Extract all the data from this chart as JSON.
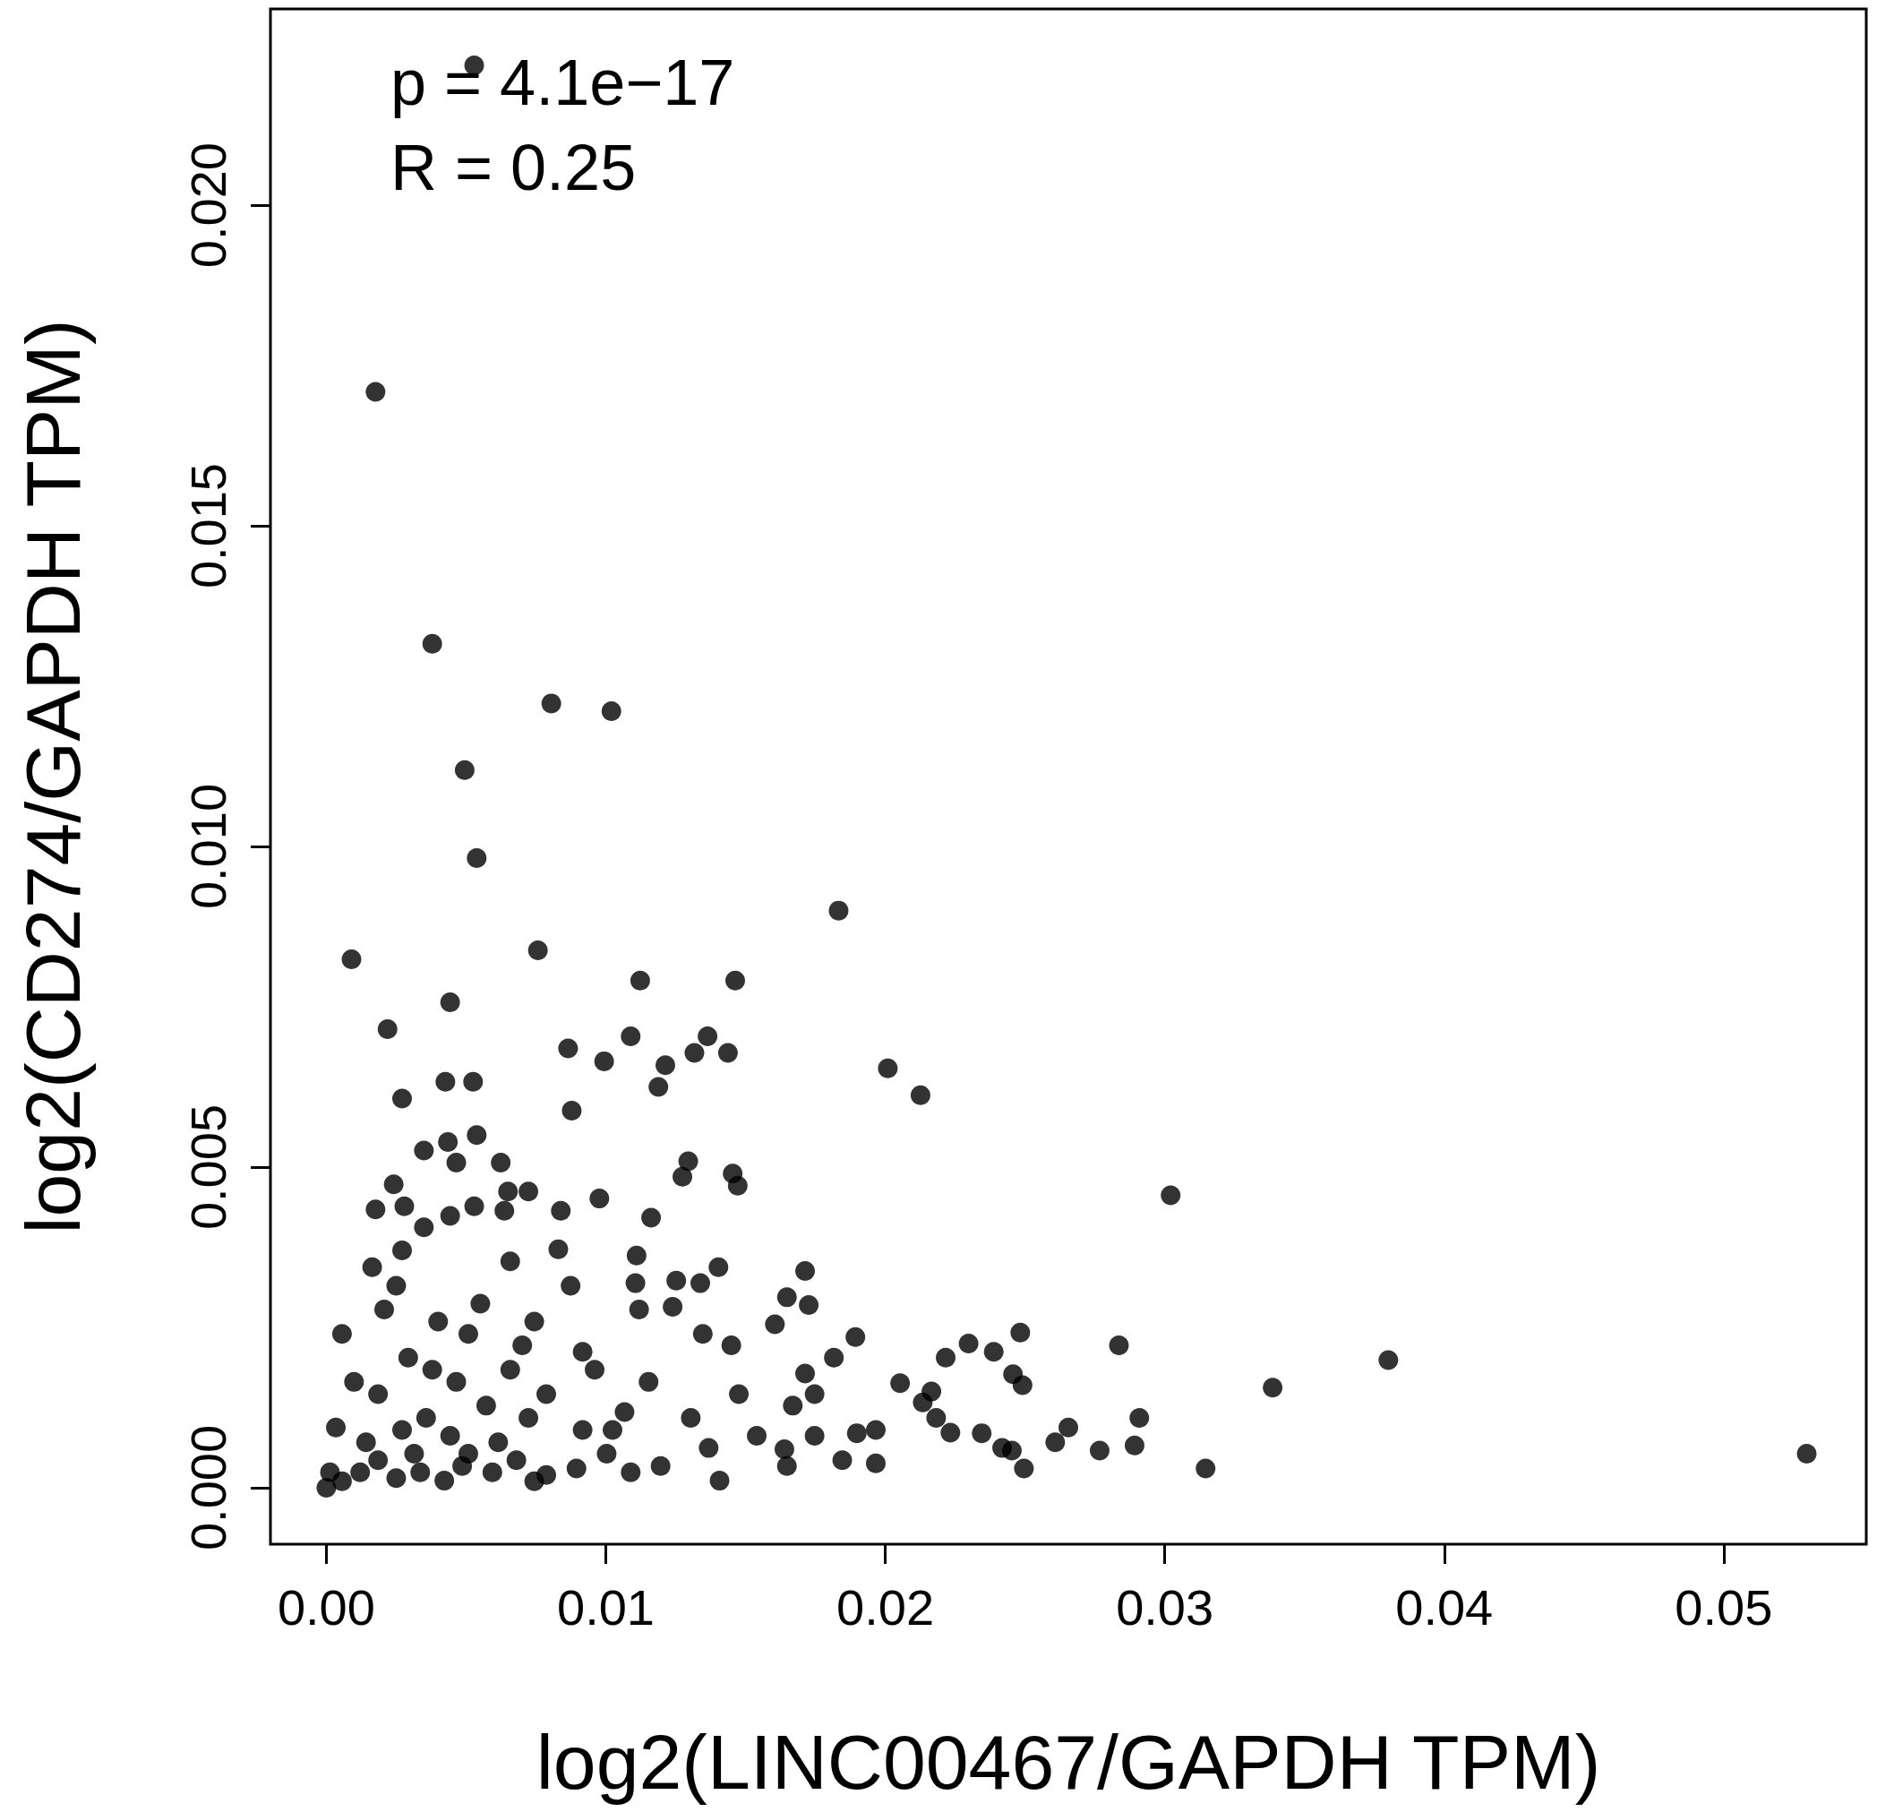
{
  "chart_data": {
    "type": "scatter",
    "xlabel": "log2(LINC00467/GAPDH TPM)",
    "ylabel": "log2(CD274/GAPDH TPM)",
    "annotations": [
      "p = 4.1e−17",
      "R = 0.25"
    ],
    "xlim": [
      -0.002,
      0.0551
    ],
    "ylim": [
      -0.00088,
      0.02306
    ],
    "xticks": [
      {
        "value": 0,
        "label": "0.00"
      },
      {
        "value": 0.01,
        "label": "0.01"
      },
      {
        "value": 0.02,
        "label": "0.02"
      },
      {
        "value": 0.03,
        "label": "0.03"
      },
      {
        "value": 0.04,
        "label": "0.04"
      },
      {
        "value": 0.05,
        "label": "0.05"
      }
    ],
    "yticks": [
      {
        "value": 0,
        "label": "0.000"
      },
      {
        "value": 0.005,
        "label": "0.005"
      },
      {
        "value": 0.01,
        "label": "0.010"
      },
      {
        "value": 0.015,
        "label": "0.015"
      },
      {
        "value": 0.02,
        "label": "0.020"
      }
    ],
    "grid": false,
    "marker": "circle",
    "series": [
      {
        "color": "#000000",
        "x": [
          0.00529,
          0.00176,
          0.00379,
          0.00805,
          0.0102,
          0.00495,
          0.00538,
          0.0009,
          0.00757,
          0.01833,
          0.01123,
          0.01463,
          0.00443,
          0.00219,
          0.00865,
          0.01089,
          0.01364,
          0.01317,
          0.01437,
          0.00994,
          0.01213,
          0.02009,
          0.02126,
          0.00426,
          0.00525,
          0.01188,
          0.00271,
          0.00878,
          0.00349,
          0.00538,
          0.00435,
          0.00465,
          0.00624,
          0.01295,
          0.01274,
          0.01454,
          0.01472,
          0.03021,
          0.00241,
          0.0065,
          0.00723,
          0.00977,
          0.00176,
          0.00279,
          0.00529,
          0.00637,
          0.00839,
          0.01162,
          0.00349,
          0.00443,
          0.00271,
          0.038,
          0.03386,
          0.05297,
          0.03146,
          0.02836,
          0.02909,
          0.02892,
          0.02767,
          0.02655,
          0.02608,
          0.02483,
          0.02388,
          0.02298,
          0.02216,
          0.02457,
          0.02491,
          0.02053,
          0.02165,
          0.02134,
          0.02182,
          0.02233,
          0.02345,
          0.02418,
          0.02496,
          0.02453,
          0.01966,
          0.01966,
          0.01846,
          0.01898,
          0.01893,
          0.01713,
          0.01648,
          0.01726,
          0.01605,
          0.01816,
          0.01713,
          0.01747,
          0.01669,
          0.01747,
          0.01639,
          0.01648,
          0.01407,
          0.01403,
          0.01338,
          0.01252,
          0.01106,
          0.0111,
          0.01239,
          0.01119,
          0.01449,
          0.01347,
          0,
          0.00013,
          0.00034,
          0.00056,
          0.00099,
          0.00142,
          0.00164,
          0.00207,
          0.0025,
          0.00293,
          0.00314,
          0.00357,
          0.004,
          0.00465,
          0.00486,
          0.00551,
          0.00572,
          0.00615,
          0.00658,
          0.00701,
          0.00744,
          0.00787,
          0.0083,
          0.00874,
          0.00917,
          0.0096,
          0.01003,
          0.01067,
          0.01153,
          0.01196,
          0.01304,
          0.01368,
          0.01476,
          0.0154,
          0.00056,
          0.00121,
          0.00185,
          0.0025,
          0.00336,
          0.00422,
          0.00508,
          0.00594,
          0.0068,
          0.00787,
          0.00895,
          0.01089,
          0.00185,
          0.00379,
          0.00508,
          0.00658,
          0.00744,
          0.00917,
          0.01024,
          0.00271,
          0.00443,
          0.00723
        ],
        "values": [
          0.02218,
          0.01709,
          0.01316,
          0.01223,
          0.01211,
          0.01119,
          0.00982,
          0.00824,
          0.00838,
          0.009,
          0.00791,
          0.00791,
          0.00757,
          0.00715,
          0.00685,
          0.00704,
          0.00704,
          0.00678,
          0.00678,
          0.00665,
          0.00659,
          0.00654,
          0.00612,
          0.00633,
          0.00633,
          0.00625,
          0.00607,
          0.00588,
          0.00526,
          0.0055,
          0.00539,
          0.00507,
          0.00507,
          0.00509,
          0.00485,
          0.0049,
          0.00471,
          0.00456,
          0.00473,
          0.00462,
          0.00462,
          0.00451,
          0.00434,
          0.00439,
          0.00439,
          0.00432,
          0.00432,
          0.00421,
          0.00406,
          0.00424,
          0.0037,
          0.00199,
          0.00156,
          0.00053,
          0.0003,
          0.00222,
          0.00109,
          0.00066,
          0.00058,
          0.00094,
          0.00071,
          0.00242,
          0.00212,
          0.00225,
          0.00203,
          0.00177,
          0.0016,
          0.00163,
          0.0015,
          0.00133,
          0.00109,
          0.00086,
          0.00085,
          0.00062,
          0.0003,
          0.00058,
          0.0009,
          0.00038,
          0.00043,
          0.00085,
          0.00235,
          0.00338,
          0.00297,
          0.00285,
          0.00255,
          0.00203,
          0.00178,
          0.00146,
          0.00128,
          0.00081,
          0.0006,
          0.00034,
          0.00011,
          0.00344,
          0.00319,
          0.00323,
          0.00319,
          0.00362,
          0.00282,
          0.00278,
          0.00222,
          0.0024,
          0,
          0.00024,
          0.00094,
          0.0024,
          0.00165,
          0.00071,
          0.00344,
          0.00278,
          0.00315,
          0.00203,
          0.00053,
          0.00109,
          0.00259,
          0.00165,
          0.00034,
          0.00287,
          0.00128,
          0.00071,
          0.00353,
          0.00222,
          0.0001,
          0.00146,
          0.00372,
          0.00315,
          0.0009,
          0.00184,
          0.00053,
          0.00118,
          0.00165,
          0.00034,
          0.00109,
          0.00062,
          0.00146,
          0.00081,
          0.0001,
          0.00024,
          0.00043,
          0.00015,
          0.00024,
          0.00011,
          0.00053,
          0.00024,
          0.00043,
          0.0002,
          0.0003,
          0.00024,
          0.00146,
          0.00184,
          0.0024,
          0.00184,
          0.00259,
          0.00212,
          0.0009,
          0.0009,
          0.00081,
          0.00109
        ]
      }
    ]
  }
}
